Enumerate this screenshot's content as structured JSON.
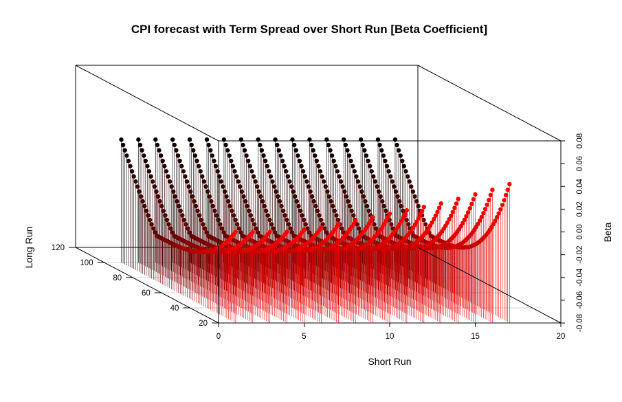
{
  "chart_data": {
    "type": "scatter3d",
    "title": "CPI forecast with Term Spread over Short Run [Beta Coefficient]",
    "xlabel": "Short Run",
    "ylabel": "Long Run",
    "zlabel": "Beta",
    "xlim": [
      0,
      20
    ],
    "ylim": [
      20,
      120
    ],
    "zlim": [
      -0.08,
      0.08
    ],
    "x_ticks": [
      "0",
      "5",
      "10",
      "15",
      "20"
    ],
    "y_ticks": [
      "20",
      "40",
      "60",
      "80",
      "100",
      "120"
    ],
    "z_ticks": [
      "-0.08",
      "-0.06",
      "-0.04",
      "-0.02",
      "0.00",
      "0.02",
      "0.04",
      "0.06",
      "0.08"
    ],
    "plot_style": "vertical drop lines with filled points; color shaded black (far) to red (near)",
    "surface_note": "each short-run slice is a U-shaped curve over long run",
    "short_run_values": [
      1,
      2,
      3,
      4,
      5,
      6,
      7,
      8,
      9,
      10,
      11,
      12,
      13,
      14,
      15,
      16,
      17
    ],
    "long_run_range": [
      20,
      100
    ],
    "beta_at_long_run_100": 0.028,
    "beta_min": -0.04,
    "beta_min_long_run": 75,
    "beta_at_long_run_20": [
      0.0,
      0.0,
      0.0,
      0.0,
      0.002,
      0.004,
      0.007,
      0.01,
      0.013,
      0.016,
      0.019,
      0.022,
      0.025,
      0.029,
      0.033,
      0.037,
      0.042
    ],
    "colors": {
      "far": "#000000",
      "near": "#ff0000",
      "axis": "#000000",
      "guide": "#c8c8c8"
    }
  }
}
